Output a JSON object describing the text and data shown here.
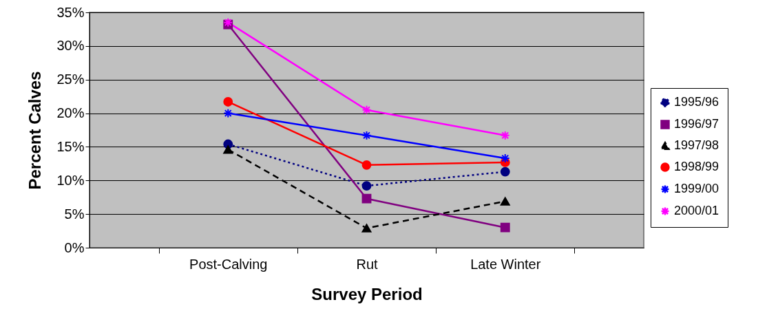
{
  "chart_data": {
    "type": "line",
    "xlabel": "Survey Period",
    "ylabel": "Percent Calves",
    "categories": [
      "Post-Calving",
      "Rut",
      "Late Winter"
    ],
    "series": [
      {
        "name": "1995/96",
        "color": "#000080",
        "marker": "circle",
        "line_style": "dotted",
        "values": [
          15.4,
          9.2,
          11.3
        ]
      },
      {
        "name": "1996/97",
        "color": "#800080",
        "marker": "square",
        "line_style": "solid",
        "values": [
          33.2,
          7.3,
          3.0
        ]
      },
      {
        "name": "1997/98",
        "color": "#000000",
        "marker": "triangle",
        "line_style": "dashed",
        "values": [
          14.6,
          2.9,
          6.9
        ]
      },
      {
        "name": "1998/99",
        "color": "#ff0000",
        "marker": "circle",
        "line_style": "solid",
        "values": [
          21.7,
          12.3,
          12.7
        ]
      },
      {
        "name": "1999/00",
        "color": "#0000ff",
        "marker": "cross",
        "line_style": "solid",
        "values": [
          20.0,
          16.7,
          13.3
        ]
      },
      {
        "name": "2000/01",
        "color": "#ff00ff",
        "marker": "cross",
        "line_style": "solid",
        "values": [
          33.5,
          20.5,
          16.7
        ]
      }
    ],
    "ylim": [
      0,
      35
    ],
    "yticks": [
      {
        "value": 0,
        "label": "0%"
      },
      {
        "value": 5,
        "label": "5%"
      },
      {
        "value": 10,
        "label": "10%"
      },
      {
        "value": 15,
        "label": "15%"
      },
      {
        "value": 20,
        "label": "20%"
      },
      {
        "value": 25,
        "label": "25%"
      },
      {
        "value": 30,
        "label": "30%"
      },
      {
        "value": 35,
        "label": "35%"
      }
    ],
    "grid": "y",
    "legend": "right"
  }
}
